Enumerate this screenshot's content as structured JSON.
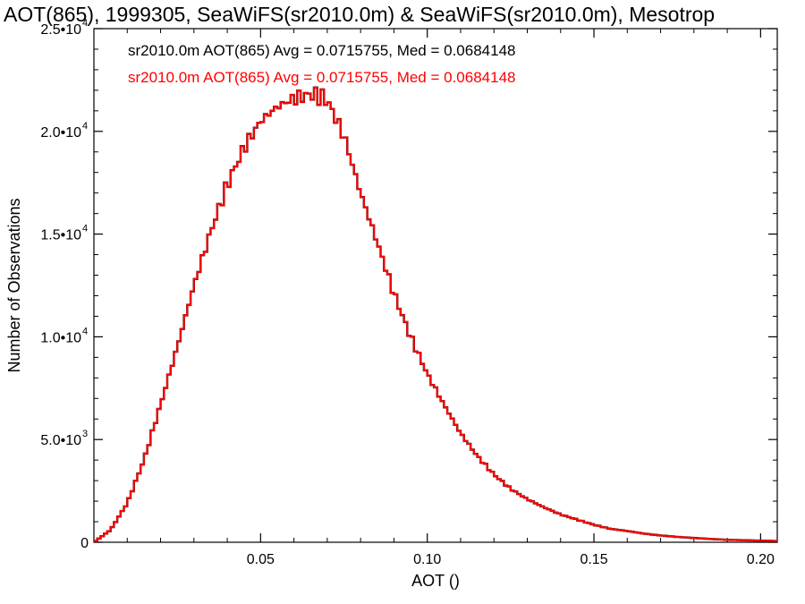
{
  "chart_data": {
    "type": "line",
    "title": "AOT(865), 1999305, SeaWiFS(sr2010.0m) & SeaWiFS(sr2010.0m), Mesotrop",
    "xlabel": "AOT ()",
    "ylabel": "Number of Observations",
    "xlim": [
      0.0,
      0.205
    ],
    "ylim": [
      0,
      25000
    ],
    "x_ticks": [
      {
        "value": 0.05,
        "label": "0.05"
      },
      {
        "value": 0.1,
        "label": "0.10"
      },
      {
        "value": 0.15,
        "label": "0.15"
      },
      {
        "value": 0.2,
        "label": "0.20"
      }
    ],
    "y_ticks": [
      {
        "value": 0,
        "mantissa": "0",
        "exponent": ""
      },
      {
        "value": 5000,
        "mantissa": "5.0•10",
        "exponent": "3"
      },
      {
        "value": 10000,
        "mantissa": "1.0•10",
        "exponent": "4"
      },
      {
        "value": 15000,
        "mantissa": "1.5•10",
        "exponent": "4"
      },
      {
        "value": 20000,
        "mantissa": "2.0•10",
        "exponent": "4"
      },
      {
        "value": 25000,
        "mantissa": "2.5•10",
        "exponent": "4"
      }
    ],
    "grid": false,
    "legend_placement": "top-left",
    "series": [
      {
        "label": "sr2010.0m AOT(865) Avg = 0.0715755, Med = 0.0684148",
        "color": "#000000",
        "x": [
          0.0,
          0.005,
          0.01,
          0.015,
          0.02,
          0.025,
          0.03,
          0.035,
          0.04,
          0.045,
          0.05,
          0.055,
          0.06,
          0.065,
          0.068,
          0.07,
          0.075,
          0.08,
          0.085,
          0.09,
          0.095,
          0.1,
          0.105,
          0.11,
          0.115,
          0.12,
          0.125,
          0.13,
          0.135,
          0.14,
          0.145,
          0.15,
          0.155,
          0.16,
          0.165,
          0.17,
          0.175,
          0.18,
          0.185,
          0.19,
          0.195,
          0.2,
          0.205
        ],
        "y": [
          0,
          600,
          1900,
          4000,
          6700,
          9500,
          12500,
          15100,
          17400,
          19200,
          20500,
          21200,
          21600,
          21800,
          21700,
          21500,
          19800,
          17000,
          14600,
          12100,
          10000,
          8200,
          6700,
          5300,
          4200,
          3300,
          2600,
          2100,
          1700,
          1350,
          1100,
          850,
          650,
          550,
          420,
          330,
          260,
          210,
          160,
          120,
          100,
          80,
          60
        ]
      },
      {
        "label": "sr2010.0m AOT(865) Avg = 0.0715755, Med = 0.0684148",
        "color": "#ff0000",
        "x": [
          0.0,
          0.005,
          0.01,
          0.015,
          0.02,
          0.025,
          0.03,
          0.035,
          0.04,
          0.045,
          0.05,
          0.055,
          0.06,
          0.065,
          0.068,
          0.07,
          0.075,
          0.08,
          0.085,
          0.09,
          0.095,
          0.1,
          0.105,
          0.11,
          0.115,
          0.12,
          0.125,
          0.13,
          0.135,
          0.14,
          0.145,
          0.15,
          0.155,
          0.16,
          0.165,
          0.17,
          0.175,
          0.18,
          0.185,
          0.19,
          0.195,
          0.2,
          0.205
        ],
        "y": [
          0,
          600,
          1900,
          4000,
          6700,
          9500,
          12500,
          15100,
          17400,
          19200,
          20500,
          21200,
          21600,
          21800,
          21700,
          21500,
          19800,
          17000,
          14600,
          12100,
          10000,
          8200,
          6700,
          5300,
          4200,
          3300,
          2600,
          2100,
          1700,
          1350,
          1100,
          850,
          650,
          550,
          420,
          330,
          260,
          210,
          160,
          120,
          100,
          80,
          60
        ]
      }
    ]
  }
}
